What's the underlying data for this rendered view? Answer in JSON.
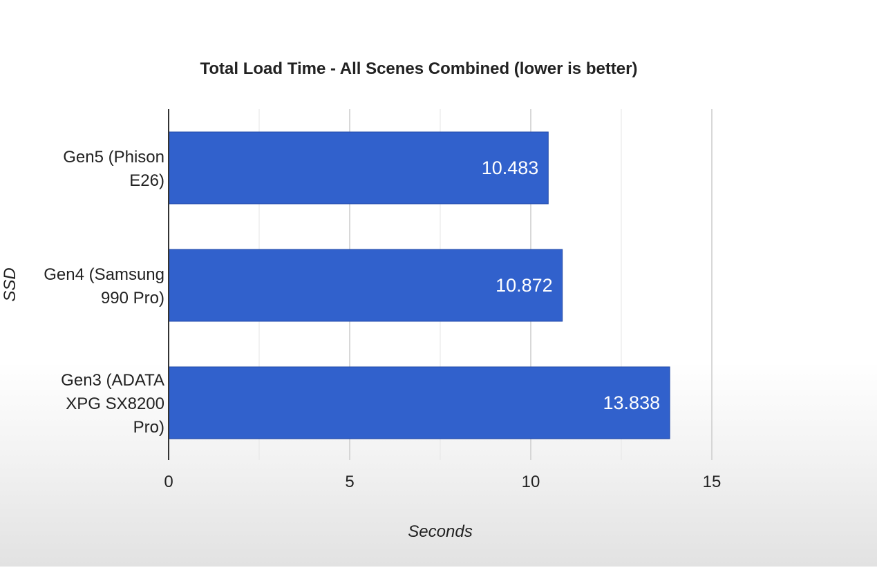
{
  "chart_data": {
    "type": "bar",
    "orientation": "horizontal",
    "title": "Total Load Time - All Scenes Combined (lower is better)",
    "xlabel": "Seconds",
    "ylabel": "SSD",
    "categories": [
      "Gen5 (Phison E26)",
      "Gen4 (Samsung 990 Pro)",
      "Gen3 (ADATA XPG SX8200 Pro)"
    ],
    "category_lines": [
      [
        "Gen5 (Phison",
        "E26)"
      ],
      [
        "Gen4 (Samsung",
        "990 Pro)"
      ],
      [
        "Gen3 (ADATA",
        "XPG SX8200",
        "Pro)"
      ]
    ],
    "values": [
      10.483,
      10.872,
      13.838
    ],
    "data_labels": [
      "10.483",
      "10.872",
      "13.838"
    ],
    "xlim": [
      0,
      15
    ],
    "x_ticks": [
      0,
      5,
      10,
      15
    ],
    "minor_gridlines": true,
    "legend": "none",
    "bar_color": "#3161cc",
    "bar_border_color": "#2149a8",
    "data_label_color": "#ffffff",
    "grid_color": "#d9d9d9",
    "text_color": "#222222"
  }
}
